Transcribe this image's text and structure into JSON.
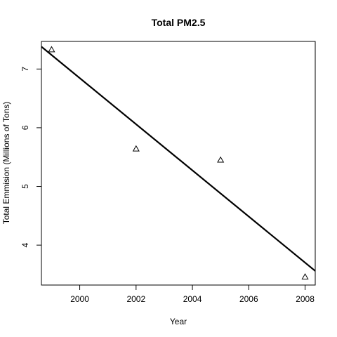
{
  "chart_data": {
    "type": "scatter",
    "title": "Total PM2.5",
    "xlabel": "Year",
    "ylabel": "Total Emmision (Millions of Tons)",
    "xlim": [
      1998.64,
      2008.36
    ],
    "ylim": [
      3.32,
      7.47
    ],
    "x_ticks": [
      2000,
      2002,
      2004,
      2006,
      2008
    ],
    "y_ticks": [
      4,
      5,
      6,
      7
    ],
    "grid": false,
    "legend": "none",
    "series": [
      {
        "marker": "triangle-open",
        "points": [
          {
            "x": 1999,
            "y": 7.33
          },
          {
            "x": 2002,
            "y": 5.64
          },
          {
            "x": 2005,
            "y": 5.45
          },
          {
            "x": 2008,
            "y": 3.46
          }
        ]
      }
    ],
    "trend_line": {
      "style": "solid",
      "color": "#000000",
      "points": [
        {
          "x": 1998.64,
          "y": 7.38
        },
        {
          "x": 2008.36,
          "y": 3.56
        }
      ]
    }
  }
}
